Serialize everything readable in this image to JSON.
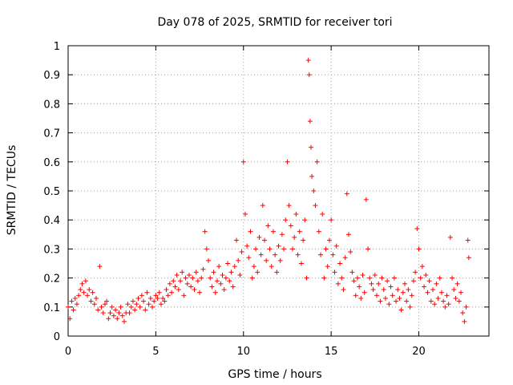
{
  "chart_data": {
    "type": "scatter",
    "title": "Day 078 of 2025, SRMTID for receiver tori",
    "xlabel": "GPS time / hours",
    "ylabel": "SRMTID / TECUs",
    "xlim": [
      0,
      24
    ],
    "ylim": [
      0,
      1
    ],
    "x_ticks": [
      0,
      5,
      10,
      15,
      20
    ],
    "x_tick_labels": [
      "0",
      "5",
      "10",
      "15",
      "20"
    ],
    "y_ticks": [
      0,
      0.1,
      0.2,
      0.3,
      0.4,
      0.5,
      0.6,
      0.7,
      0.8,
      0.9,
      1
    ],
    "y_tick_labels": [
      "0",
      "0.1",
      "0.2",
      "0.3",
      "0.4",
      "0.5",
      "0.6",
      "0.7",
      "0.8",
      "0.9",
      "1"
    ],
    "grid": true,
    "marker": "+",
    "marker_color": "#ff0000",
    "series": [
      {
        "name": "SRMTID",
        "points": [
          [
            0.0,
            0.1
          ],
          [
            0.1,
            0.06
          ],
          [
            0.2,
            0.12
          ],
          [
            0.3,
            0.09
          ],
          [
            0.4,
            0.13
          ],
          [
            0.5,
            0.11
          ],
          [
            0.6,
            0.14
          ],
          [
            0.7,
            0.16
          ],
          [
            0.8,
            0.18
          ],
          [
            0.9,
            0.15
          ],
          [
            1.0,
            0.19
          ],
          [
            1.1,
            0.14
          ],
          [
            1.2,
            0.16
          ],
          [
            1.3,
            0.12
          ],
          [
            1.4,
            0.15
          ],
          [
            1.5,
            0.11
          ],
          [
            1.6,
            0.13
          ],
          [
            1.7,
            0.09
          ],
          [
            1.8,
            0.24
          ],
          [
            1.9,
            0.1
          ],
          [
            2.0,
            0.08
          ],
          [
            2.1,
            0.11
          ],
          [
            2.2,
            0.12
          ],
          [
            2.3,
            0.06
          ],
          [
            2.4,
            0.08
          ],
          [
            2.5,
            0.1
          ],
          [
            2.6,
            0.07
          ],
          [
            2.7,
            0.09
          ],
          [
            2.8,
            0.06
          ],
          [
            2.9,
            0.08
          ],
          [
            3.0,
            0.1
          ],
          [
            3.1,
            0.07
          ],
          [
            3.2,
            0.05
          ],
          [
            3.3,
            0.08
          ],
          [
            3.4,
            0.11
          ],
          [
            3.5,
            0.08
          ],
          [
            3.6,
            0.1
          ],
          [
            3.7,
            0.12
          ],
          [
            3.8,
            0.09
          ],
          [
            3.9,
            0.11
          ],
          [
            4.0,
            0.13
          ],
          [
            4.1,
            0.1
          ],
          [
            4.2,
            0.14
          ],
          [
            4.3,
            0.12
          ],
          [
            4.4,
            0.09
          ],
          [
            4.5,
            0.15
          ],
          [
            4.6,
            0.11
          ],
          [
            4.7,
            0.13
          ],
          [
            4.8,
            0.1
          ],
          [
            4.9,
            0.12
          ],
          [
            5.0,
            0.14
          ],
          [
            5.1,
            0.13
          ],
          [
            5.2,
            0.15
          ],
          [
            5.3,
            0.11
          ],
          [
            5.4,
            0.13
          ],
          [
            5.5,
            0.12
          ],
          [
            5.6,
            0.16
          ],
          [
            5.7,
            0.14
          ],
          [
            5.8,
            0.18
          ],
          [
            5.9,
            0.15
          ],
          [
            6.0,
            0.19
          ],
          [
            6.1,
            0.17
          ],
          [
            6.2,
            0.21
          ],
          [
            6.3,
            0.16
          ],
          [
            6.4,
            0.19
          ],
          [
            6.5,
            0.22
          ],
          [
            6.6,
            0.14
          ],
          [
            6.7,
            0.2
          ],
          [
            6.8,
            0.18
          ],
          [
            6.9,
            0.21
          ],
          [
            7.0,
            0.17
          ],
          [
            7.1,
            0.2
          ],
          [
            7.2,
            0.16
          ],
          [
            7.3,
            0.22
          ],
          [
            7.4,
            0.19
          ],
          [
            7.5,
            0.15
          ],
          [
            7.6,
            0.2
          ],
          [
            7.7,
            0.23
          ],
          [
            7.8,
            0.36
          ],
          [
            7.9,
            0.3
          ],
          [
            8.0,
            0.26
          ],
          [
            8.1,
            0.2
          ],
          [
            8.2,
            0.17
          ],
          [
            8.3,
            0.22
          ],
          [
            8.4,
            0.15
          ],
          [
            8.5,
            0.19
          ],
          [
            8.6,
            0.24
          ],
          [
            8.7,
            0.18
          ],
          [
            8.8,
            0.21
          ],
          [
            8.9,
            0.16
          ],
          [
            9.0,
            0.2
          ],
          [
            9.1,
            0.25
          ],
          [
            9.2,
            0.19
          ],
          [
            9.3,
            0.22
          ],
          [
            9.4,
            0.17
          ],
          [
            9.5,
            0.24
          ],
          [
            9.6,
            0.33
          ],
          [
            9.7,
            0.26
          ],
          [
            9.8,
            0.21
          ],
          [
            9.9,
            0.29
          ],
          [
            10.0,
            0.6
          ],
          [
            10.1,
            0.42
          ],
          [
            10.2,
            0.31
          ],
          [
            10.3,
            0.27
          ],
          [
            10.4,
            0.36
          ],
          [
            10.5,
            0.2
          ],
          [
            10.6,
            0.24
          ],
          [
            10.7,
            0.3
          ],
          [
            10.8,
            0.22
          ],
          [
            10.9,
            0.34
          ],
          [
            11.0,
            0.28
          ],
          [
            11.1,
            0.45
          ],
          [
            11.2,
            0.33
          ],
          [
            11.3,
            0.26
          ],
          [
            11.4,
            0.38
          ],
          [
            11.5,
            0.3
          ],
          [
            11.6,
            0.24
          ],
          [
            11.7,
            0.36
          ],
          [
            11.8,
            0.28
          ],
          [
            11.9,
            0.22
          ],
          [
            12.0,
            0.31
          ],
          [
            12.1,
            0.26
          ],
          [
            12.2,
            0.35
          ],
          [
            12.3,
            0.3
          ],
          [
            12.4,
            0.4
          ],
          [
            12.5,
            0.6
          ],
          [
            12.6,
            0.45
          ],
          [
            12.7,
            0.38
          ],
          [
            12.8,
            0.3
          ],
          [
            12.9,
            0.34
          ],
          [
            13.0,
            0.42
          ],
          [
            13.1,
            0.28
          ],
          [
            13.2,
            0.36
          ],
          [
            13.3,
            0.25
          ],
          [
            13.4,
            0.33
          ],
          [
            13.5,
            0.4
          ],
          [
            13.6,
            0.2
          ],
          [
            13.7,
            0.95
          ],
          [
            13.75,
            0.9
          ],
          [
            13.8,
            0.74
          ],
          [
            13.85,
            0.65
          ],
          [
            13.9,
            0.55
          ],
          [
            14.0,
            0.5
          ],
          [
            14.1,
            0.45
          ],
          [
            14.2,
            0.6
          ],
          [
            14.3,
            0.36
          ],
          [
            14.4,
            0.28
          ],
          [
            14.5,
            0.42
          ],
          [
            14.6,
            0.2
          ],
          [
            14.7,
            0.3
          ],
          [
            14.8,
            0.24
          ],
          [
            14.9,
            0.33
          ],
          [
            15.0,
            0.4
          ],
          [
            15.1,
            0.28
          ],
          [
            15.2,
            0.22
          ],
          [
            15.3,
            0.31
          ],
          [
            15.4,
            0.18
          ],
          [
            15.5,
            0.25
          ],
          [
            15.6,
            0.2
          ],
          [
            15.7,
            0.16
          ],
          [
            15.8,
            0.27
          ],
          [
            15.9,
            0.49
          ],
          [
            16.0,
            0.35
          ],
          [
            16.1,
            0.29
          ],
          [
            16.2,
            0.22
          ],
          [
            16.3,
            0.19
          ],
          [
            16.4,
            0.14
          ],
          [
            16.5,
            0.2
          ],
          [
            16.6,
            0.17
          ],
          [
            16.7,
            0.13
          ],
          [
            16.8,
            0.21
          ],
          [
            16.9,
            0.15
          ],
          [
            17.0,
            0.47
          ],
          [
            17.1,
            0.3
          ],
          [
            17.2,
            0.2
          ],
          [
            17.3,
            0.18
          ],
          [
            17.4,
            0.16
          ],
          [
            17.5,
            0.21
          ],
          [
            17.6,
            0.14
          ],
          [
            17.7,
            0.18
          ],
          [
            17.8,
            0.12
          ],
          [
            17.9,
            0.2
          ],
          [
            18.0,
            0.16
          ],
          [
            18.1,
            0.13
          ],
          [
            18.2,
            0.19
          ],
          [
            18.3,
            0.11
          ],
          [
            18.4,
            0.17
          ],
          [
            18.5,
            0.14
          ],
          [
            18.6,
            0.2
          ],
          [
            18.7,
            0.12
          ],
          [
            18.8,
            0.16
          ],
          [
            18.9,
            0.13
          ],
          [
            19.0,
            0.09
          ],
          [
            19.1,
            0.15
          ],
          [
            19.2,
            0.18
          ],
          [
            19.3,
            0.12
          ],
          [
            19.4,
            0.16
          ],
          [
            19.5,
            0.1
          ],
          [
            19.6,
            0.14
          ],
          [
            19.7,
            0.19
          ],
          [
            19.8,
            0.22
          ],
          [
            19.9,
            0.37
          ],
          [
            20.0,
            0.3
          ],
          [
            20.1,
            0.2
          ],
          [
            20.2,
            0.24
          ],
          [
            20.3,
            0.17
          ],
          [
            20.4,
            0.21
          ],
          [
            20.5,
            0.15
          ],
          [
            20.6,
            0.19
          ],
          [
            20.7,
            0.12
          ],
          [
            20.8,
            0.16
          ],
          [
            20.9,
            0.11
          ],
          [
            21.0,
            0.18
          ],
          [
            21.1,
            0.13
          ],
          [
            21.2,
            0.2
          ],
          [
            21.3,
            0.15
          ],
          [
            21.4,
            0.12
          ],
          [
            21.5,
            0.1
          ],
          [
            21.6,
            0.14
          ],
          [
            21.7,
            0.11
          ],
          [
            21.8,
            0.34
          ],
          [
            21.9,
            0.2
          ],
          [
            22.0,
            0.16
          ],
          [
            22.1,
            0.13
          ],
          [
            22.2,
            0.18
          ],
          [
            22.3,
            0.12
          ],
          [
            22.4,
            0.15
          ],
          [
            22.5,
            0.08
          ],
          [
            22.6,
            0.05
          ],
          [
            22.7,
            0.1
          ],
          [
            22.8,
            0.33
          ],
          [
            22.85,
            0.27
          ]
        ]
      }
    ]
  }
}
